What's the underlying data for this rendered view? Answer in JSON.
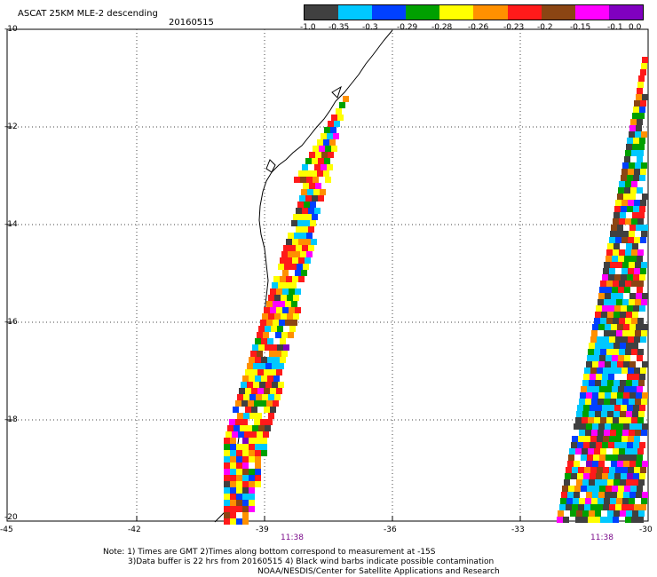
{
  "title": "ASCAT 25KM MLE-2 descending",
  "date": "20160515",
  "colorbar": {
    "colors": [
      "#404040",
      "#00c8ff",
      "#0040ff",
      "#00a000",
      "#ffff00",
      "#ff9000",
      "#ff1a1a",
      "#8b4513",
      "#ff00ff",
      "#8000c0"
    ],
    "labels": [
      "-1.0",
      "-0.35",
      "-0.3",
      "-0.29",
      "-0.28",
      "-0.26",
      "-0.23",
      "-0.2",
      "-0.15",
      "-0.1",
      "0.0"
    ]
  },
  "axes": {
    "lat_labels": [
      "-10",
      "-12",
      "-14",
      "-16",
      "-18",
      "-20"
    ],
    "lon_labels": [
      "-45",
      "-42",
      "-39",
      "-36",
      "-33",
      "-30"
    ]
  },
  "pass_times": [
    "11:38",
    "11:38"
  ],
  "notes": {
    "line1": "Note: 1) Times are GMT 2)Times along bottom correspond to measurement at -15S",
    "line2": "3)Data buffer is 22 hrs from 20160515 4) Black wind barbs indicate possible contamination",
    "line3": "NOAA/NESDIS/Center for Satellite Applications and Research"
  }
}
